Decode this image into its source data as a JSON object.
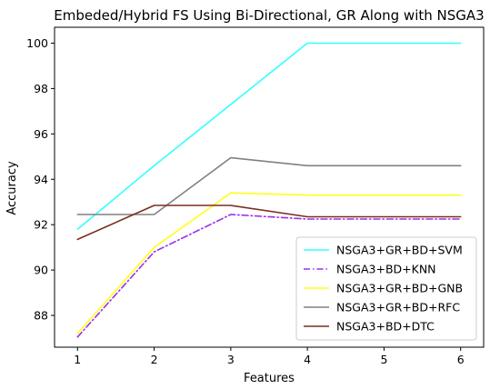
{
  "chart_data": {
    "type": "line",
    "title": "Embeded/Hybrid FS Using Bi-Directional, GR Along with NSGA3",
    "xlabel": "Features",
    "ylabel": "Accuracy",
    "x": [
      1,
      2,
      3,
      4,
      5,
      6
    ],
    "x_ticks": [
      "1",
      "2",
      "3",
      "4",
      "5",
      "6"
    ],
    "y_ticks": [
      "88",
      "90",
      "92",
      "94",
      "96",
      "98",
      "100"
    ],
    "xlim": [
      0.7,
      6.3
    ],
    "ylim": [
      86.6,
      100.7
    ],
    "grid": false,
    "legend_position": "lower-right",
    "series": [
      {
        "name": "NSGA3+GR+BD+SVM",
        "values": [
          91.8,
          94.6,
          97.3,
          100.0,
          100.0,
          100.0
        ],
        "color": "#33ffff",
        "style": "solid"
      },
      {
        "name": "NSGA3+BD+KNN",
        "values": [
          87.05,
          90.8,
          92.45,
          92.25,
          92.25,
          92.25
        ],
        "color": "#9b30e8",
        "style": "dashdot"
      },
      {
        "name": "NSGA3+GR+BD+GNB",
        "values": [
          87.2,
          91.0,
          93.4,
          93.3,
          93.3,
          93.3
        ],
        "color": "#ffff1a",
        "style": "solid"
      },
      {
        "name": "NSGA3+GR+BD+RFC",
        "values": [
          92.45,
          92.45,
          94.95,
          94.6,
          94.6,
          94.6
        ],
        "color": "#808080",
        "style": "solid"
      },
      {
        "name": "NSGA3+BD+DTC",
        "values": [
          91.35,
          92.85,
          92.85,
          92.35,
          92.35,
          92.35
        ],
        "color": "#7a2e22",
        "style": "solid"
      }
    ]
  }
}
